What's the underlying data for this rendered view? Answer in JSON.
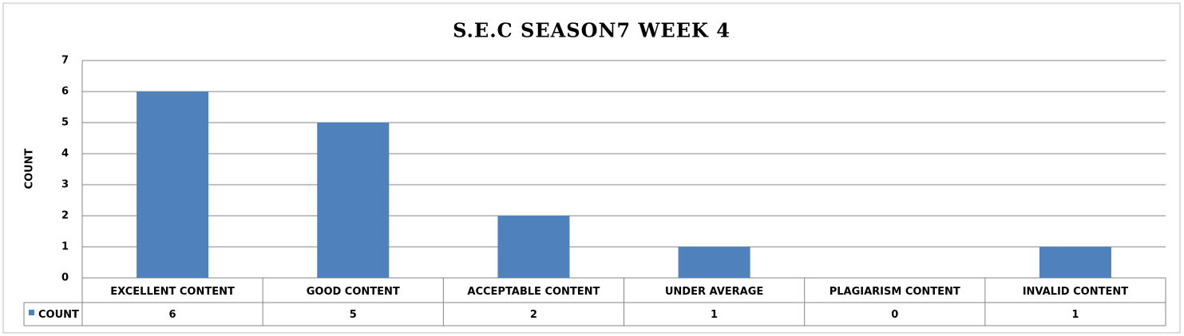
{
  "chart_data": {
    "type": "bar",
    "title": "S.E.C SEASON7 WEEK 4",
    "y_label": "COUNT",
    "categories": [
      "EXCELLENT CONTENT",
      "GOOD CONTENT",
      "ACCEPTABLE CONTENT",
      "UNDER AVERAGE",
      "PLAGIARISM CONTENT",
      "INVALID CONTENT"
    ],
    "series": [
      {
        "name": "COUNT",
        "color": "#4f81bd",
        "values": [
          6,
          5,
          2,
          1,
          0,
          1
        ]
      }
    ],
    "ylim": [
      0,
      7
    ],
    "yticks": [
      0,
      1,
      2,
      3,
      4,
      5,
      6,
      7
    ],
    "grid": true,
    "data_table": true
  }
}
